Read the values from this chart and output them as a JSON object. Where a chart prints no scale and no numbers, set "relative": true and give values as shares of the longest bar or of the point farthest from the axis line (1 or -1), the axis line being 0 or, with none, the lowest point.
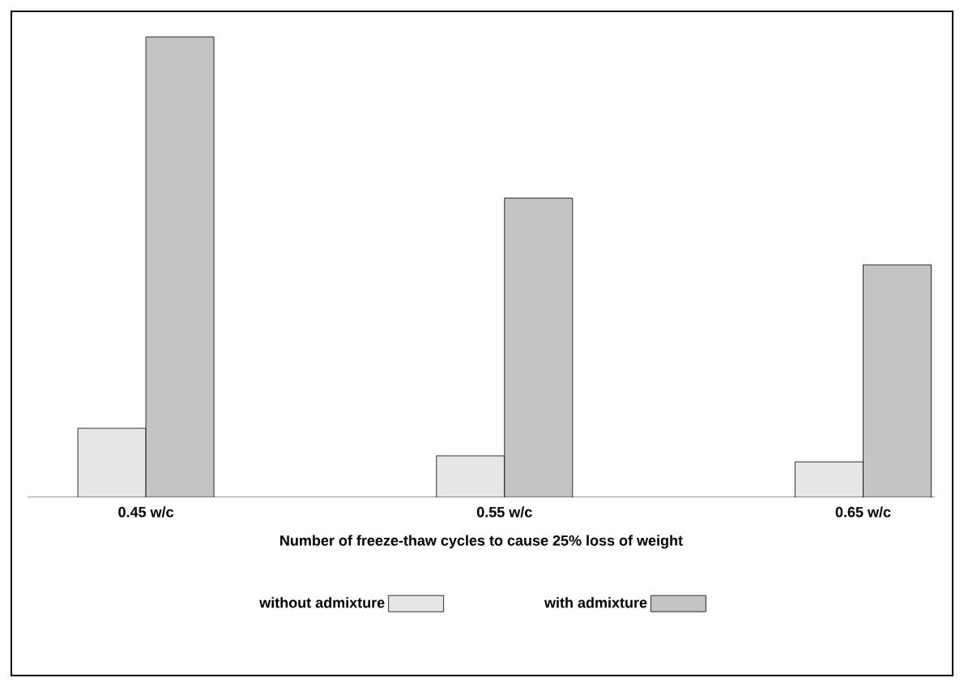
{
  "chart_data": {
    "type": "bar",
    "relative": true,
    "xlabel": "Number of freeze-thaw cycles to cause 25% loss of weight",
    "categories": [
      "0.45 w/c",
      "0.55 w/c",
      "0.65 w/c"
    ],
    "series": [
      {
        "name": "without admixture",
        "color": "#e6e6e6",
        "values": [
          0.15,
          0.09,
          0.077
        ]
      },
      {
        "name": "with admixture",
        "color": "#c4c4c4",
        "values": [
          1,
          0.65,
          0.505
        ]
      }
    ],
    "legend": "bottom"
  }
}
